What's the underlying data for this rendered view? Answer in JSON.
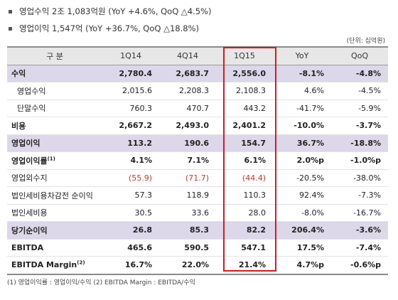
{
  "bullets": [
    "영업수익 2조 1,083억원 (YoY +4.6%, QoQ △4.5%)",
    "영업이익 1,547억 (YoY +36.7%, QoQ △18.8%)"
  ],
  "unit": "(단위: 십억원)",
  "headers": [
    "구 분",
    "1Q14",
    "4Q14",
    "1Q15",
    "YoY",
    "QoQ"
  ],
  "rows": [
    {
      "label": "수익",
      "sup": "",
      "values": [
        "2,780.4",
        "2,683.7",
        "2,556.0",
        "-8.1%",
        "-4.8%"
      ]
    },
    {
      "label": "영업수익",
      "sup": "",
      "values": [
        "2,015.6",
        "2,208.3",
        "2,108.3",
        "4.6%",
        "-4.5%"
      ]
    },
    {
      "label": "단말수익",
      "sup": "",
      "values": [
        "760.3",
        "470.7",
        "443.2",
        "-41.7%",
        "-5.9%"
      ]
    },
    {
      "label": "비용",
      "sup": "",
      "values": [
        "2,667.2",
        "2,493.0",
        "2,401.2",
        "-10.0%",
        "-3.7%"
      ]
    },
    {
      "label": "영업이익",
      "sup": "",
      "values": [
        "113.2",
        "190.6",
        "154.7",
        "36.7%",
        "-18.8%"
      ]
    },
    {
      "label": "영업이익률",
      "sup": "(1)",
      "values": [
        "4.1%",
        "7.1%",
        "6.1%",
        "2.0%p",
        "-1.0%p"
      ]
    },
    {
      "label": "영업외수지",
      "sup": "",
      "values": [
        "(55.9)",
        "(71.7)",
        "(44.4)",
        "-20.5%",
        "-38.0%"
      ]
    },
    {
      "label": "법인세비용차감전 순이익",
      "sup": "",
      "values": [
        "57.3",
        "118.9",
        "110.3",
        "92.4%",
        "-7.3%"
      ]
    },
    {
      "label": "법인세비용",
      "sup": "",
      "values": [
        "30.5",
        "33.6",
        "28.0",
        "-8.0%",
        "-16.7%"
      ]
    },
    {
      "label": "당기순이익",
      "sup": "",
      "values": [
        "26.8",
        "85.3",
        "82.2",
        "206.4%",
        "-3.6%"
      ]
    },
    {
      "label": "EBITDA",
      "sup": "",
      "values": [
        "465.6",
        "590.5",
        "547.1",
        "17.5%",
        "-7.4%"
      ]
    },
    {
      "label": "EBITDA Margin",
      "sup": "(2)",
      "values": [
        "16.7%",
        "22.0%",
        "21.4%",
        "4.7%p",
        "-0.6%p"
      ]
    }
  ],
  "footnote": "(1) 영업이익률 : 영업이익/수익    (2) EBITDA Margin : EBITDA/수익",
  "colors": {
    "highlight_row": "#ddd7ea",
    "header_bg": "#e7e7e7",
    "box_border": "#e0141e",
    "negative_text": "#c0392b"
  }
}
